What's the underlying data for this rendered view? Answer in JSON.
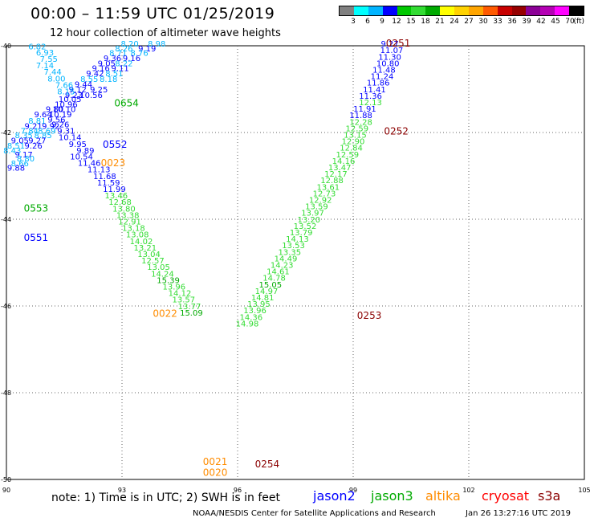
{
  "header": {
    "title": "00:00 – 11:59 UTC 01/25/2019",
    "subtitle": "12 hour collection of altimeter wave heights"
  },
  "colorbar": {
    "unit": "(ft)",
    "colors": [
      "#808080",
      "#00ffff",
      "#00b4ff",
      "#0000ff",
      "#00c800",
      "#32dc32",
      "#00aa00",
      "#ffff00",
      "#ffd200",
      "#ffa500",
      "#ff5a00",
      "#c80000",
      "#960000",
      "#8b0096",
      "#b400b4",
      "#ff00ff",
      "#000000"
    ],
    "ticks": [
      "3",
      "6",
      "9",
      "12",
      "15",
      "18",
      "21",
      "24",
      "27",
      "30",
      "33",
      "36",
      "39",
      "42",
      "45",
      "70"
    ]
  },
  "map": {
    "x_ticks": [
      "90",
      "93",
      "96",
      "99",
      "102",
      "105"
    ],
    "y_ticks": [
      "-40",
      "-42",
      "-44",
      "-46",
      "-48",
      "-50"
    ]
  },
  "legend": {
    "note": "note: 1) Time is in UTC; 2) SWH is in feet",
    "sats": [
      {
        "name": "jason2",
        "color": "#0000ff"
      },
      {
        "name": "jason3",
        "color": "#00aa00"
      },
      {
        "name": "altika",
        "color": "#ff8c00"
      },
      {
        "name": "cryosat",
        "color": "#ff0000"
      },
      {
        "name": "s3a",
        "color": "#8b0000"
      }
    ]
  },
  "footer": {
    "credit": "NOAA/NESDIS Center for Satellite Applications and Research",
    "timestamp": "Jan 26 13:27:16 UTC 2019"
  },
  "chart_data": {
    "type": "scatter",
    "xlim": [
      90,
      105
    ],
    "ylim": [
      -50,
      -40
    ],
    "track_labels": [
      {
        "text": "0251",
        "lon": 99.85,
        "lat": -40.02,
        "sat": "s3a"
      },
      {
        "text": "0252",
        "lon": 99.8,
        "lat": -42.05,
        "sat": "s3a"
      },
      {
        "text": "0253",
        "lon": 99.1,
        "lat": -46.3,
        "sat": "s3a"
      },
      {
        "text": "0254",
        "lon": 96.45,
        "lat": -49.72,
        "sat": "s3a"
      },
      {
        "text": "0654",
        "lon": 92.8,
        "lat": -41.4,
        "sat": "jason3"
      },
      {
        "text": "0552",
        "lon": 92.5,
        "lat": -42.35,
        "sat": "jason2"
      },
      {
        "text": "0023",
        "lon": 92.45,
        "lat": -42.78,
        "sat": "altika"
      },
      {
        "text": "0553",
        "lon": 90.45,
        "lat": -43.82,
        "sat": "jason3"
      },
      {
        "text": "0551",
        "lon": 90.45,
        "lat": -44.5,
        "sat": "jason2"
      },
      {
        "text": "0022",
        "lon": 93.8,
        "lat": -46.25,
        "sat": "altika"
      },
      {
        "text": "0021",
        "lon": 95.1,
        "lat": -49.67,
        "sat": "altika"
      },
      {
        "text": "0020",
        "lon": 95.1,
        "lat": -49.92,
        "sat": "altika"
      }
    ],
    "points": [
      {
        "text": "8.20",
        "lon": 93.2,
        "lat": -40.02,
        "c": "#00b4ff"
      },
      {
        "text": "8.98",
        "lon": 93.9,
        "lat": -40.02,
        "c": "#00b4ff"
      },
      {
        "text": "8.26",
        "lon": 93.05,
        "lat": -40.13,
        "c": "#00b4ff"
      },
      {
        "text": "9.19",
        "lon": 93.65,
        "lat": -40.13,
        "c": "#0000ff"
      },
      {
        "text": "8.71",
        "lon": 92.9,
        "lat": -40.23,
        "c": "#00b4ff"
      },
      {
        "text": "8.76",
        "lon": 93.45,
        "lat": -40.23,
        "c": "#00b4ff"
      },
      {
        "text": "9.36",
        "lon": 92.75,
        "lat": -40.35,
        "c": "#0000ff"
      },
      {
        "text": "9.16",
        "lon": 93.25,
        "lat": -40.35,
        "c": "#0000ff"
      },
      {
        "text": "9.05",
        "lon": 92.6,
        "lat": -40.47,
        "c": "#0000ff"
      },
      {
        "text": "8.22",
        "lon": 93.05,
        "lat": -40.47,
        "c": "#00b4ff"
      },
      {
        "text": "9.16",
        "lon": 92.45,
        "lat": -40.58,
        "c": "#0000ff"
      },
      {
        "text": "9.11",
        "lon": 92.95,
        "lat": -40.58,
        "c": "#0000ff"
      },
      {
        "text": "9.42",
        "lon": 92.3,
        "lat": -40.7,
        "c": "#0000ff"
      },
      {
        "text": "8.51",
        "lon": 92.8,
        "lat": -40.7,
        "c": "#00b4ff"
      },
      {
        "text": "8.55",
        "lon": 92.15,
        "lat": -40.83,
        "c": "#00b4ff"
      },
      {
        "text": "8.18",
        "lon": 92.65,
        "lat": -40.83,
        "c": "#00b4ff"
      },
      {
        "text": "9.44",
        "lon": 92.0,
        "lat": -40.95,
        "c": "#0000ff"
      },
      {
        "text": "9.12",
        "lon": 91.85,
        "lat": -41.07,
        "c": "#0000ff"
      },
      {
        "text": "9.25",
        "lon": 92.4,
        "lat": -41.07,
        "c": "#0000ff"
      },
      {
        "text": "9.23",
        "lon": 91.75,
        "lat": -41.2,
        "c": "#0000ff"
      },
      {
        "text": "10.56",
        "lon": 92.2,
        "lat": -41.2,
        "c": "#0000ff"
      },
      {
        "text": "10.05",
        "lon": 91.65,
        "lat": -41.3,
        "c": "#0000ff"
      },
      {
        "text": "10.96",
        "lon": 91.55,
        "lat": -41.42,
        "c": "#0000ff"
      },
      {
        "text": "9.80",
        "lon": 91.25,
        "lat": -41.53,
        "c": "#0000ff"
      },
      {
        "text": "10.10",
        "lon": 91.5,
        "lat": -41.53,
        "c": "#0000ff"
      },
      {
        "text": "9.64",
        "lon": 90.95,
        "lat": -41.65,
        "c": "#0000ff"
      },
      {
        "text": "10.19",
        "lon": 91.4,
        "lat": -41.65,
        "c": "#0000ff"
      },
      {
        "text": "9.56",
        "lon": 91.3,
        "lat": -41.77,
        "c": "#0000ff"
      },
      {
        "text": "8.81",
        "lon": 90.8,
        "lat": -41.8,
        "c": "#00b4ff"
      },
      {
        "text": "9.26",
        "lon": 91.4,
        "lat": -41.88,
        "c": "#0000ff"
      },
      {
        "text": "9.21",
        "lon": 90.7,
        "lat": -41.92,
        "c": "#0000ff"
      },
      {
        "text": "9.92",
        "lon": 91.15,
        "lat": -41.92,
        "c": "#0000ff"
      },
      {
        "text": "7.84",
        "lon": 90.6,
        "lat": -42.03,
        "c": "#00b4ff"
      },
      {
        "text": "8.69",
        "lon": 91.05,
        "lat": -42.03,
        "c": "#00b4ff"
      },
      {
        "text": "9.31",
        "lon": 91.55,
        "lat": -42.03,
        "c": "#0000ff"
      },
      {
        "text": "8.35",
        "lon": 90.45,
        "lat": -42.13,
        "c": "#00b4ff"
      },
      {
        "text": "8.85",
        "lon": 90.95,
        "lat": -42.13,
        "c": "#00b4ff"
      },
      {
        "text": "10.14",
        "lon": 91.65,
        "lat": -42.18,
        "c": "#0000ff"
      },
      {
        "text": "9.05",
        "lon": 90.35,
        "lat": -42.25,
        "c": "#0000ff"
      },
      {
        "text": "9.27",
        "lon": 90.8,
        "lat": -42.25,
        "c": "#0000ff"
      },
      {
        "text": "8.51",
        "lon": 90.25,
        "lat": -42.37,
        "c": "#00b4ff"
      },
      {
        "text": "9.26",
        "lon": 90.7,
        "lat": -42.37,
        "c": "#0000ff"
      },
      {
        "text": "9.95",
        "lon": 91.85,
        "lat": -42.33,
        "c": "#0000ff"
      },
      {
        "text": "8.43",
        "lon": 90.15,
        "lat": -42.48,
        "c": "#00b4ff"
      },
      {
        "text": "9.89",
        "lon": 92.05,
        "lat": -42.48,
        "c": "#0000ff"
      },
      {
        "text": "9.17",
        "lon": 90.45,
        "lat": -42.57,
        "c": "#0000ff"
      },
      {
        "text": "8.80",
        "lon": 90.5,
        "lat": -42.67,
        "c": "#00b4ff"
      },
      {
        "text": "10.54",
        "lon": 91.95,
        "lat": -42.62,
        "c": "#0000ff"
      },
      {
        "text": "8.66",
        "lon": 90.35,
        "lat": -42.78,
        "c": "#00b4ff"
      },
      {
        "text": "11.46",
        "lon": 92.15,
        "lat": -42.77,
        "c": "#0000ff"
      },
      {
        "text": "9.88",
        "lon": 90.25,
        "lat": -42.88,
        "c": "#0000ff"
      },
      {
        "text": "11.13",
        "lon": 92.4,
        "lat": -42.92,
        "c": "#0000ff"
      },
      {
        "text": "11.68",
        "lon": 92.55,
        "lat": -43.07,
        "c": "#0000ff"
      },
      {
        "text": "11.59",
        "lon": 92.65,
        "lat": -43.22,
        "c": "#0000ff"
      },
      {
        "text": "11.99",
        "lon": 92.8,
        "lat": -43.37,
        "c": "#0000ff"
      },
      {
        "text": "6.82",
        "lon": 90.8,
        "lat": -40.08,
        "c": "#00b4ff"
      },
      {
        "text": "6.93",
        "lon": 91.0,
        "lat": -40.22,
        "c": "#00b4ff"
      },
      {
        "text": "7.55",
        "lon": 91.1,
        "lat": -40.37,
        "c": "#00b4ff"
      },
      {
        "text": "7.14",
        "lon": 91.0,
        "lat": -40.52,
        "c": "#00b4ff"
      },
      {
        "text": "7.44",
        "lon": 91.2,
        "lat": -40.67,
        "c": "#00b4ff"
      },
      {
        "text": "8.00",
        "lon": 91.3,
        "lat": -40.82,
        "c": "#00b4ff"
      },
      {
        "text": "7.66",
        "lon": 91.5,
        "lat": -40.97,
        "c": "#00b4ff"
      },
      {
        "text": "8.15",
        "lon": 91.55,
        "lat": -41.12,
        "c": "#00b4ff"
      },
      {
        "text": "13.46",
        "lon": 92.85,
        "lat": -43.52,
        "c": "#32dc32"
      },
      {
        "text": "12.68",
        "lon": 92.95,
        "lat": -43.67,
        "c": "#32dc32"
      },
      {
        "text": "13.80",
        "lon": 93.05,
        "lat": -43.82,
        "c": "#32dc32"
      },
      {
        "text": "13.38",
        "lon": 93.15,
        "lat": -43.97,
        "c": "#32dc32"
      },
      {
        "text": "12.91",
        "lon": 93.2,
        "lat": -44.12,
        "c": "#32dc32"
      },
      {
        "text": "13.18",
        "lon": 93.3,
        "lat": -44.27,
        "c": "#32dc32"
      },
      {
        "text": "13.08",
        "lon": 93.4,
        "lat": -44.42,
        "c": "#32dc32"
      },
      {
        "text": "14.02",
        "lon": 93.5,
        "lat": -44.57,
        "c": "#32dc32"
      },
      {
        "text": "13.21",
        "lon": 93.6,
        "lat": -44.72,
        "c": "#32dc32"
      },
      {
        "text": "13.04",
        "lon": 93.7,
        "lat": -44.87,
        "c": "#32dc32"
      },
      {
        "text": "12.57",
        "lon": 93.8,
        "lat": -45.02,
        "c": "#32dc32"
      },
      {
        "text": "13.05",
        "lon": 93.95,
        "lat": -45.17,
        "c": "#32dc32"
      },
      {
        "text": "14.24",
        "lon": 94.05,
        "lat": -45.32,
        "c": "#32dc32"
      },
      {
        "text": "15.39",
        "lon": 94.2,
        "lat": -45.47,
        "c": "#00aa00"
      },
      {
        "text": "13.96",
        "lon": 94.35,
        "lat": -45.62,
        "c": "#32dc32"
      },
      {
        "text": "14.12",
        "lon": 94.5,
        "lat": -45.77,
        "c": "#32dc32"
      },
      {
        "text": "13.57",
        "lon": 94.6,
        "lat": -45.92,
        "c": "#32dc32"
      },
      {
        "text": "13.77",
        "lon": 94.75,
        "lat": -46.07,
        "c": "#32dc32"
      },
      {
        "text": "15.09",
        "lon": 94.8,
        "lat": -46.22,
        "c": "#00aa00"
      },
      {
        "text": "9.27",
        "lon": 99.95,
        "lat": -40.02,
        "c": "#0000ff"
      },
      {
        "text": "11.07",
        "lon": 100.0,
        "lat": -40.17,
        "c": "#0000ff"
      },
      {
        "text": "11.30",
        "lon": 99.95,
        "lat": -40.32,
        "c": "#0000ff"
      },
      {
        "text": "10.80",
        "lon": 99.9,
        "lat": -40.47,
        "c": "#0000ff"
      },
      {
        "text": "11.48",
        "lon": 99.8,
        "lat": -40.62,
        "c": "#0000ff"
      },
      {
        "text": "11.24",
        "lon": 99.75,
        "lat": -40.77,
        "c": "#0000ff"
      },
      {
        "text": "11.86",
        "lon": 99.65,
        "lat": -40.92,
        "c": "#0000ff"
      },
      {
        "text": "11.41",
        "lon": 99.55,
        "lat": -41.07,
        "c": "#0000ff"
      },
      {
        "text": "11.36",
        "lon": 99.45,
        "lat": -41.22,
        "c": "#0000ff"
      },
      {
        "text": "12.13",
        "lon": 99.45,
        "lat": -41.37,
        "c": "#32dc32"
      },
      {
        "text": "11.91",
        "lon": 99.3,
        "lat": -41.52,
        "c": "#0000ff"
      },
      {
        "text": "11.88",
        "lon": 99.2,
        "lat": -41.67,
        "c": "#0000ff"
      },
      {
        "text": "12.28",
        "lon": 99.2,
        "lat": -41.82,
        "c": "#32dc32"
      },
      {
        "text": "12.59",
        "lon": 99.1,
        "lat": -41.97,
        "c": "#32dc32"
      },
      {
        "text": "13.15",
        "lon": 99.05,
        "lat": -42.12,
        "c": "#32dc32"
      },
      {
        "text": "12.90",
        "lon": 99.0,
        "lat": -42.27,
        "c": "#32dc32"
      },
      {
        "text": "12.84",
        "lon": 98.95,
        "lat": -42.42,
        "c": "#32dc32"
      },
      {
        "text": "12.59",
        "lon": 98.85,
        "lat": -42.57,
        "c": "#32dc32"
      },
      {
        "text": "14.16",
        "lon": 98.75,
        "lat": -42.72,
        "c": "#32dc32"
      },
      {
        "text": "13.47",
        "lon": 98.65,
        "lat": -42.87,
        "c": "#32dc32"
      },
      {
        "text": "12.17",
        "lon": 98.55,
        "lat": -43.02,
        "c": "#32dc32"
      },
      {
        "text": "12.88",
        "lon": 98.45,
        "lat": -43.17,
        "c": "#32dc32"
      },
      {
        "text": "13.61",
        "lon": 98.35,
        "lat": -43.32,
        "c": "#32dc32"
      },
      {
        "text": "12.73",
        "lon": 98.25,
        "lat": -43.47,
        "c": "#32dc32"
      },
      {
        "text": "12.92",
        "lon": 98.15,
        "lat": -43.62,
        "c": "#32dc32"
      },
      {
        "text": "13.59",
        "lon": 98.05,
        "lat": -43.77,
        "c": "#32dc32"
      },
      {
        "text": "13.97",
        "lon": 97.95,
        "lat": -43.92,
        "c": "#32dc32"
      },
      {
        "text": "13.20",
        "lon": 97.85,
        "lat": -44.07,
        "c": "#32dc32"
      },
      {
        "text": "13.52",
        "lon": 97.75,
        "lat": -44.22,
        "c": "#32dc32"
      },
      {
        "text": "13.79",
        "lon": 97.65,
        "lat": -44.37,
        "c": "#32dc32"
      },
      {
        "text": "14.13",
        "lon": 97.55,
        "lat": -44.52,
        "c": "#32dc32"
      },
      {
        "text": "13.53",
        "lon": 97.45,
        "lat": -44.67,
        "c": "#32dc32"
      },
      {
        "text": "13.35",
        "lon": 97.35,
        "lat": -44.82,
        "c": "#32dc32"
      },
      {
        "text": "14.49",
        "lon": 97.25,
        "lat": -44.97,
        "c": "#32dc32"
      },
      {
        "text": "14.23",
        "lon": 97.15,
        "lat": -45.12,
        "c": "#32dc32"
      },
      {
        "text": "14.61",
        "lon": 97.05,
        "lat": -45.27,
        "c": "#32dc32"
      },
      {
        "text": "14.78",
        "lon": 96.95,
        "lat": -45.42,
        "c": "#32dc32"
      },
      {
        "text": "15.05",
        "lon": 96.85,
        "lat": -45.57,
        "c": "#00aa00"
      },
      {
        "text": "14.97",
        "lon": 96.75,
        "lat": -45.72,
        "c": "#32dc32"
      },
      {
        "text": "14.81",
        "lon": 96.65,
        "lat": -45.87,
        "c": "#32dc32"
      },
      {
        "text": "13.95",
        "lon": 96.55,
        "lat": -46.02,
        "c": "#32dc32"
      },
      {
        "text": "13.96",
        "lon": 96.45,
        "lat": -46.17,
        "c": "#32dc32"
      },
      {
        "text": "14.36",
        "lon": 96.35,
        "lat": -46.32,
        "c": "#32dc32"
      },
      {
        "text": "14.98",
        "lon": 96.25,
        "lat": -46.47,
        "c": "#32dc32"
      }
    ]
  }
}
